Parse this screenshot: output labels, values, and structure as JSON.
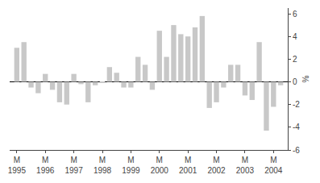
{
  "chart_data": {
    "type": "bar",
    "ylabel": "%",
    "categories": [
      "M\n1995",
      null,
      null,
      null,
      "M\n1996",
      null,
      null,
      null,
      "M\n1997",
      null,
      null,
      null,
      "M\n1998",
      null,
      null,
      null,
      "M\n1999",
      null,
      null,
      null,
      "M\n2000",
      null,
      null,
      null,
      "M\n2001",
      null,
      null,
      null,
      "M\n2002",
      null,
      null,
      null,
      "M\n2003",
      null,
      null,
      null,
      "M\n2004",
      null
    ],
    "values": [
      3.0,
      3.5,
      -0.5,
      -1.0,
      0.7,
      -0.7,
      -1.8,
      -2.0,
      0.7,
      -0.2,
      -1.8,
      -0.3,
      -0.1,
      1.3,
      0.8,
      -0.5,
      -0.5,
      2.2,
      1.5,
      -0.7,
      4.5,
      2.2,
      5.0,
      4.2,
      4.0,
      4.8,
      5.8,
      -2.3,
      -1.8,
      -0.5,
      1.5,
      1.5,
      -1.2,
      -1.6,
      3.5,
      -4.3,
      -2.2,
      -0.3
    ],
    "color": "#c8c8c8",
    "ylim": [
      -6.0,
      6.5
    ],
    "yticks": [
      -6,
      -4,
      -2,
      0,
      2,
      4,
      6
    ],
    "grid": false
  }
}
